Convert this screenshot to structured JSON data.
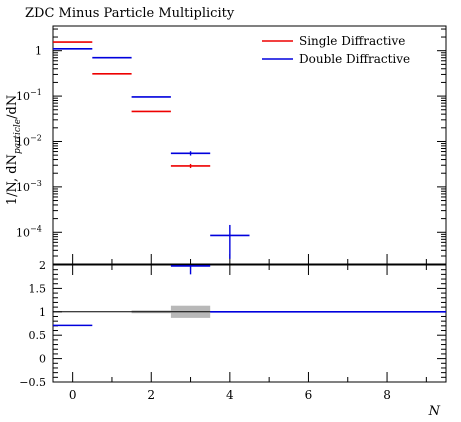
{
  "chart_data": {
    "type": "scatter",
    "title": "ZDC Minus Particle Multiplicity",
    "xlabel": "N",
    "ylabel_main": "1/N, dN",
    "ylabel_sub": "particle",
    "ylabel_tail": "/dN",
    "xlim": [
      -0.5,
      9.5
    ],
    "ylim_main": [
      2e-05,
      3.5
    ],
    "ylim_ratio": [
      -0.5,
      2
    ],
    "y_scale_main": "log",
    "grid": false,
    "legend_position": "top-right",
    "x_ticks": [
      {
        "value": 0,
        "label": "0"
      },
      {
        "value": 2,
        "label": "2"
      },
      {
        "value": 4,
        "label": "4"
      },
      {
        "value": 6,
        "label": "6"
      },
      {
        "value": 8,
        "label": "8"
      }
    ],
    "y_ticks_main": [
      {
        "value": 1,
        "label": "1"
      },
      {
        "value": 0.1,
        "label": "10",
        "exp": "−1"
      },
      {
        "value": 0.01,
        "label": "10",
        "exp": "−2"
      },
      {
        "value": 0.001,
        "label": "10",
        "exp": "−3"
      },
      {
        "value": 0.0001,
        "label": "10",
        "exp": "−4"
      }
    ],
    "y_ticks_ratio": [
      {
        "value": 2,
        "label": "2"
      },
      {
        "value": 1.5,
        "label": "1.5"
      },
      {
        "value": 1,
        "label": "1"
      },
      {
        "value": 0.5,
        "label": "0.5"
      },
      {
        "value": 0,
        "label": "0"
      },
      {
        "value": -0.5,
        "label": "−0.5"
      }
    ],
    "series": [
      {
        "name": "Single Diffractive",
        "color": "#ee0000",
        "bins": [
          {
            "xlo": -0.5,
            "xhi": 0.5,
            "y": 1.55
          },
          {
            "xlo": 0.5,
            "xhi": 1.5,
            "y": 0.31
          },
          {
            "xlo": 1.5,
            "xhi": 2.5,
            "y": 0.046
          },
          {
            "xlo": 2.5,
            "xhi": 3.5,
            "y": 0.0029,
            "err": 0.0003
          }
        ],
        "ratio": []
      },
      {
        "name": "Double Diffractive",
        "color": "#0000dd",
        "bins": [
          {
            "xlo": -0.5,
            "xhi": 0.5,
            "y": 1.1
          },
          {
            "xlo": 0.5,
            "xhi": 1.5,
            "y": 0.7
          },
          {
            "xlo": 1.5,
            "xhi": 2.5,
            "y": 0.096
          },
          {
            "xlo": 2.5,
            "xhi": 3.5,
            "y": 0.0055,
            "err": 0.0006
          },
          {
            "xlo": 3.5,
            "xhi": 4.5,
            "y": 8.5e-05,
            "err_lo": 6e-05,
            "err_hi": 6e-05
          }
        ],
        "ratio": [
          {
            "xlo": -0.5,
            "xhi": 0.5,
            "y": 0.71
          },
          {
            "xlo": 2.5,
            "xhi": 3.5,
            "y": 1.98,
            "err_lo": 0.18,
            "err_hi": 0.0
          },
          {
            "xlo": 3.5,
            "xhi": 9.5,
            "y": 1.0
          }
        ]
      }
    ],
    "reference_band": [
      {
        "xlo": 1.5,
        "xhi": 2.5,
        "lo": 0.97,
        "hi": 1.03
      },
      {
        "xlo": 2.5,
        "xhi": 3.5,
        "lo": 0.87,
        "hi": 1.13
      }
    ],
    "reference_line": 1
  }
}
